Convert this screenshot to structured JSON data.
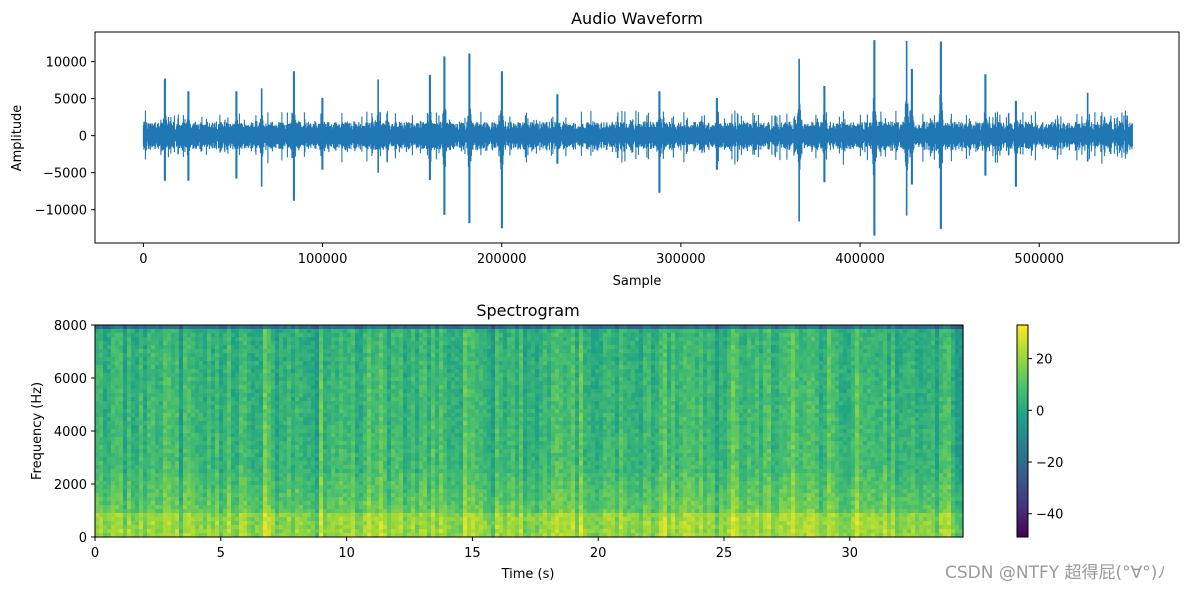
{
  "chart_data": [
    {
      "type": "line",
      "title": "Audio Waveform",
      "xlabel": "Sample",
      "ylabel": "Amplitude",
      "xlim": [
        -27000,
        578000
      ],
      "ylim": [
        -14500,
        14000
      ],
      "xticks": [
        0,
        100000,
        200000,
        300000,
        400000,
        500000
      ],
      "xtick_labels": [
        "0",
        "100000",
        "200000",
        "300000",
        "400000",
        "500000"
      ],
      "yticks": [
        10000,
        5000,
        0,
        -5000,
        -10000
      ],
      "ytick_labels": [
        "10000",
        "5000",
        "0",
        "−5000",
        "−10000"
      ],
      "grid": false,
      "series": [
        {
          "color": "#1f77b4",
          "n_samples": 552000,
          "base_amplitude": 1300,
          "spikes": [
            {
              "x": 12000,
              "max": 7700,
              "min": -6100
            },
            {
              "x": 25000,
              "max": 6000,
              "min": -6100
            },
            {
              "x": 52000,
              "max": 6000,
              "min": -5800
            },
            {
              "x": 66000,
              "max": 6400,
              "min": -6900
            },
            {
              "x": 84000,
              "max": 8700,
              "min": -8800
            },
            {
              "x": 100000,
              "max": 5100,
              "min": -4600
            },
            {
              "x": 131000,
              "max": 7600,
              "min": -5000
            },
            {
              "x": 160000,
              "max": 8200,
              "min": -6000
            },
            {
              "x": 168000,
              "max": 10700,
              "min": -10700
            },
            {
              "x": 182000,
              "max": 11100,
              "min": -11800
            },
            {
              "x": 200000,
              "max": 8700,
              "min": -12500
            },
            {
              "x": 231000,
              "max": 5600,
              "min": -3800
            },
            {
              "x": 288000,
              "max": 6000,
              "min": -7700
            },
            {
              "x": 320000,
              "max": 5100,
              "min": -4600
            },
            {
              "x": 366000,
              "max": 10400,
              "min": -11600
            },
            {
              "x": 380000,
              "max": 6700,
              "min": -6300
            },
            {
              "x": 408000,
              "max": 12900,
              "min": -13500
            },
            {
              "x": 426000,
              "max": 12800,
              "min": -10800
            },
            {
              "x": 429000,
              "max": 9000,
              "min": -6600
            },
            {
              "x": 445000,
              "max": 12700,
              "min": -12600
            },
            {
              "x": 470000,
              "max": 8300,
              "min": -5400
            },
            {
              "x": 487000,
              "max": 4700,
              "min": -6900
            },
            {
              "x": 527000,
              "max": 5800,
              "min": -3500
            }
          ]
        }
      ]
    },
    {
      "type": "heatmap",
      "title": "Spectrogram",
      "xlabel": "Time (s)",
      "ylabel": "Frequency (Hz)",
      "xlim": [
        0,
        34.5
      ],
      "ylim": [
        0,
        8000
      ],
      "xticks": [
        0,
        5,
        10,
        15,
        20,
        25,
        30
      ],
      "xtick_labels": [
        "0",
        "5",
        "10",
        "15",
        "20",
        "25",
        "30"
      ],
      "yticks": [
        0,
        2000,
        4000,
        6000,
        8000
      ],
      "yticks_labels": [
        "0",
        "2000",
        "4000",
        "6000",
        "8000"
      ],
      "colormap": "viridis",
      "colorbar": {
        "range": [
          -49,
          33
        ],
        "ticks": [
          20,
          0,
          -20,
          -40
        ],
        "tick_labels": [
          "20",
          "0",
          "−20",
          "−40"
        ]
      },
      "typical_level_db": {
        "low_freq": 20,
        "mid_freq": 8,
        "high_freq": 4
      }
    }
  ],
  "watermark": "CSDN @NTFY 超得屁(°∀°)ﾉ"
}
